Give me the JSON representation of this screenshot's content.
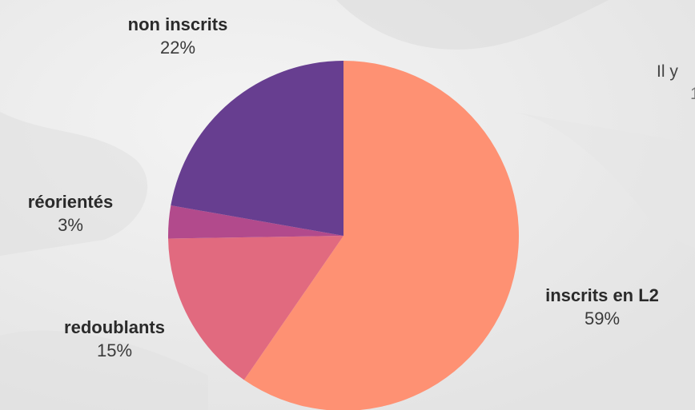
{
  "chart_data": {
    "type": "pie",
    "start_angle_deg": 0,
    "direction": "clockwise",
    "slices": [
      {
        "name": "inscrits en L2",
        "value": 59,
        "label": "59%",
        "color": "#fe9173"
      },
      {
        "name": "redoublants",
        "value": 15,
        "label": "15%",
        "color": "#e16a7f"
      },
      {
        "name": "réorientés",
        "value": 3,
        "label": "3%",
        "color": "#b24a8c"
      },
      {
        "name": "non inscrits",
        "value": 22,
        "label": "22%",
        "color": "#673e90"
      }
    ]
  },
  "side_text": {
    "line1": "Il y",
    "line2": "1"
  }
}
